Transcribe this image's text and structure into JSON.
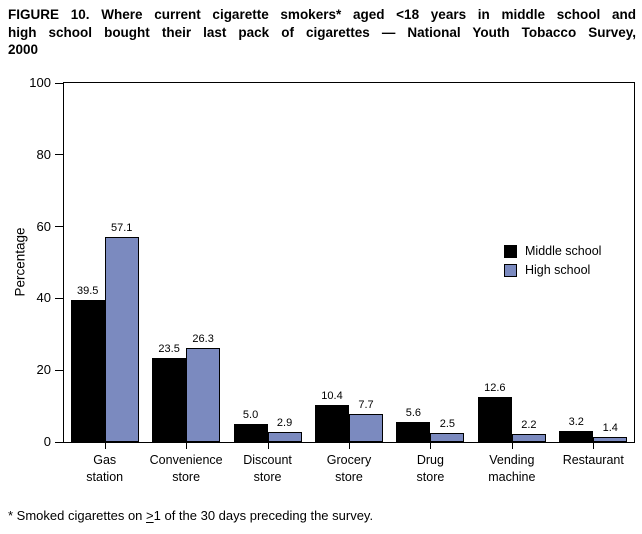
{
  "figure": {
    "title_lines": [
      "FIGURE 10. Where current cigarette smokers* aged <18 years in middle school and",
      "high school bought their last pack of cigarettes — National Youth Tobacco Survey,",
      "2000"
    ],
    "footnote": {
      "prefix": "* Smoked cigarettes on ",
      "geq_symbol": ">",
      "rest": "1 of the 30 days preceding the survey."
    }
  },
  "chart_data": {
    "type": "bar",
    "title": "FIGURE 10. Where current cigarette smokers* aged <18 years in middle school and high school bought their last pack of cigarettes — National Youth Tobacco Survey, 2000",
    "categories": [
      "Gas station",
      "Convenience store",
      "Discount store",
      "Grocery store",
      "Drug store",
      "Vending machine",
      "Restaurant"
    ],
    "category_label_lines": [
      [
        "Gas",
        "station"
      ],
      [
        "Convenience",
        "store"
      ],
      [
        "Discount",
        "store"
      ],
      [
        "Grocery",
        "store"
      ],
      [
        "Drug",
        "store"
      ],
      [
        "Vending",
        "machine"
      ],
      [
        "Restaurant"
      ]
    ],
    "series": [
      {
        "name": "Middle school",
        "color": "#000000",
        "values": [
          39.5,
          23.5,
          5.0,
          10.4,
          5.6,
          12.6,
          3.2
        ]
      },
      {
        "name": "High school",
        "color": "#7B8ABF",
        "values": [
          57.1,
          26.3,
          2.9,
          7.7,
          2.5,
          2.2,
          1.4
        ]
      }
    ],
    "xlabel": "",
    "ylabel": "Percentage",
    "ylim": [
      0,
      100
    ],
    "y_ticks": [
      0,
      20,
      40,
      60,
      80,
      100
    ],
    "grid": false,
    "legend_position": "inside-right",
    "value_labels_shown": true,
    "colors": {
      "axis": "#000000",
      "background": "#FFFFFF",
      "middle_school_bar": "#000000",
      "high_school_bar": "#7B8ABF"
    }
  }
}
